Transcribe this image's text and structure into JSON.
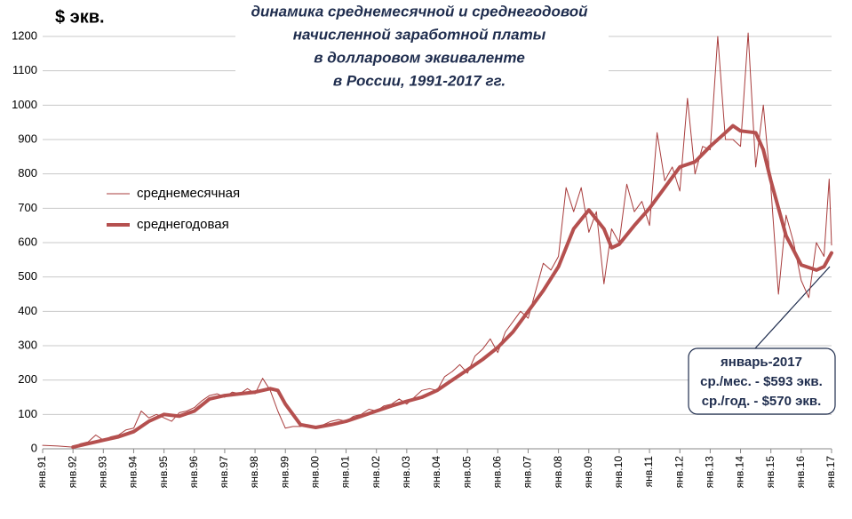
{
  "chart_data": {
    "type": "line",
    "title": [
      "динамика среднемесячной  и среднегодовой",
      "начисленной заработной платы",
      "в долларовом эквиваленте",
      "в России, 1991-2017 гг."
    ],
    "y_label": "$ экв.",
    "xlim": [
      1991,
      2017
    ],
    "xticks": [
      {
        "value": 1991,
        "label": "янв.91"
      },
      {
        "value": 1992,
        "label": "янв.92"
      },
      {
        "value": 1993,
        "label": "янв.93"
      },
      {
        "value": 1994,
        "label": "янв.94"
      },
      {
        "value": 1995,
        "label": "янв.95"
      },
      {
        "value": 1996,
        "label": "янв.96"
      },
      {
        "value": 1997,
        "label": "янв.97"
      },
      {
        "value": 1998,
        "label": "янв.98"
      },
      {
        "value": 1999,
        "label": "янв.99"
      },
      {
        "value": 2000,
        "label": "янв.00"
      },
      {
        "value": 2001,
        "label": "янв.01"
      },
      {
        "value": 2002,
        "label": "янв.02"
      },
      {
        "value": 2003,
        "label": "янв.03"
      },
      {
        "value": 2004,
        "label": "янв.04"
      },
      {
        "value": 2005,
        "label": "янв.05"
      },
      {
        "value": 2006,
        "label": "янв.06"
      },
      {
        "value": 2007,
        "label": "янв.07"
      },
      {
        "value": 2008,
        "label": "янв.08"
      },
      {
        "value": 2009,
        "label": "янв.09"
      },
      {
        "value": 2010,
        "label": "янв.10"
      },
      {
        "value": 2011,
        "label": "янв.11"
      },
      {
        "value": 2012,
        "label": "янв.12"
      },
      {
        "value": 2013,
        "label": "янв.13"
      },
      {
        "value": 2014,
        "label": "янв.14"
      },
      {
        "value": 2015,
        "label": "янв.15"
      },
      {
        "value": 2016,
        "label": "янв.16"
      },
      {
        "value": 2017,
        "label": "янв.17"
      }
    ],
    "ylim": [
      0,
      1200
    ],
    "yticks": [
      0,
      100,
      200,
      300,
      400,
      500,
      600,
      700,
      800,
      900,
      1000,
      1100,
      1200
    ],
    "grid": true,
    "legend": "upper-left",
    "series": [
      {
        "name": "среднемесячная",
        "color": "#a83c3c",
        "width": 1,
        "x": [
          1991,
          1991.5,
          1992,
          1992.25,
          1992.5,
          1992.75,
          1993,
          1993.25,
          1993.5,
          1993.75,
          1994,
          1994.25,
          1994.5,
          1994.75,
          1995,
          1995.25,
          1995.5,
          1995.75,
          1996,
          1996.25,
          1996.5,
          1996.75,
          1997,
          1997.25,
          1997.5,
          1997.75,
          1998,
          1998.25,
          1998.5,
          1998.75,
          1999,
          1999.25,
          1999.5,
          1999.75,
          2000,
          2000.25,
          2000.5,
          2000.75,
          2001,
          2001.25,
          2001.5,
          2001.75,
          2002,
          2002.25,
          2002.5,
          2002.75,
          2003,
          2003.25,
          2003.5,
          2003.75,
          2004,
          2004.25,
          2004.5,
          2004.75,
          2005,
          2005.25,
          2005.5,
          2005.75,
          2006,
          2006.25,
          2006.5,
          2006.75,
          2007,
          2007.25,
          2007.5,
          2007.75,
          2008,
          2008.25,
          2008.5,
          2008.75,
          2009,
          2009.25,
          2009.5,
          2009.75,
          2010,
          2010.25,
          2010.5,
          2010.75,
          2011,
          2011.25,
          2011.5,
          2011.75,
          2012,
          2012.25,
          2012.5,
          2012.75,
          2013,
          2013.25,
          2013.5,
          2013.75,
          2014,
          2014.25,
          2014.5,
          2014.75,
          2015,
          2015.25,
          2015.5,
          2015.75,
          2016,
          2016.25,
          2016.5,
          2016.75,
          2016.92,
          2017
        ],
        "values": [
          10,
          8,
          5,
          15,
          20,
          40,
          25,
          35,
          40,
          55,
          60,
          110,
          90,
          100,
          90,
          80,
          105,
          110,
          120,
          140,
          155,
          160,
          150,
          165,
          160,
          175,
          160,
          205,
          170,
          110,
          60,
          65,
          65,
          70,
          60,
          70,
          80,
          85,
          80,
          95,
          100,
          115,
          110,
          125,
          130,
          145,
          130,
          150,
          170,
          175,
          170,
          210,
          225,
          245,
          220,
          270,
          290,
          320,
          280,
          340,
          370,
          400,
          380,
          460,
          540,
          520,
          560,
          760,
          690,
          760,
          630,
          690,
          480,
          640,
          600,
          770,
          690,
          720,
          650,
          920,
          780,
          820,
          750,
          1020,
          800,
          880,
          870,
          1200,
          900,
          900,
          880,
          1210,
          820,
          1000,
          760,
          450,
          680,
          600,
          490,
          440,
          600,
          560,
          785,
          593
        ]
      },
      {
        "name": "среднегодовая",
        "color": "#b5504f",
        "width": 4,
        "x": [
          1992,
          1992.5,
          1993,
          1993.5,
          1994,
          1994.5,
          1995,
          1995.5,
          1996,
          1996.5,
          1997,
          1997.5,
          1998,
          1998.5,
          1998.75,
          1999,
          1999.5,
          2000,
          2000.5,
          2001,
          2001.5,
          2002,
          2002.5,
          2003,
          2003.5,
          2004,
          2004.5,
          2005,
          2005.5,
          2006,
          2006.5,
          2007,
          2007.5,
          2008,
          2008.5,
          2009,
          2009.5,
          2009.75,
          2010,
          2010.5,
          2011,
          2011.5,
          2012,
          2012.5,
          2013,
          2013.5,
          2013.75,
          2014,
          2014.5,
          2014.75,
          2015,
          2015.5,
          2016,
          2016.5,
          2016.75,
          2017
        ],
        "values": [
          5,
          15,
          25,
          35,
          50,
          80,
          100,
          95,
          110,
          145,
          155,
          160,
          165,
          175,
          170,
          130,
          70,
          62,
          70,
          80,
          95,
          110,
          125,
          138,
          150,
          170,
          200,
          230,
          260,
          295,
          340,
          400,
          460,
          530,
          640,
          695,
          640,
          585,
          595,
          650,
          700,
          760,
          820,
          835,
          880,
          920,
          940,
          925,
          920,
          870,
          780,
          620,
          535,
          520,
          530,
          570
        ]
      }
    ],
    "annotation": [
      "январь-2017",
      "ср./мес. - $593 экв.",
      "ср./год. - $570 экв."
    ]
  }
}
